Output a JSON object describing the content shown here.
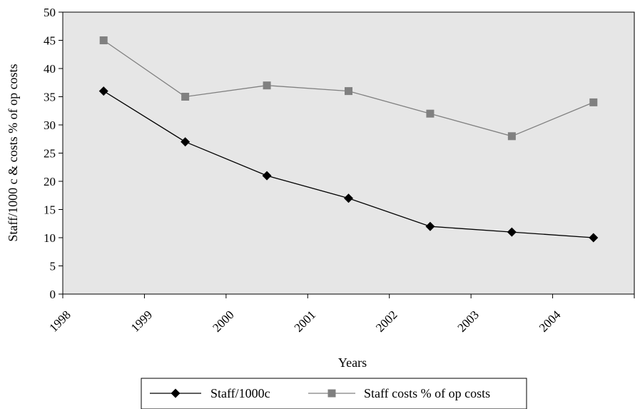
{
  "chart_data": {
    "type": "line",
    "categories": [
      "1998",
      "1999",
      "2000",
      "2001",
      "2002",
      "2003",
      "2004"
    ],
    "series": [
      {
        "name": "Staff/1000c",
        "values": [
          36,
          27,
          21,
          17,
          12,
          11,
          10
        ],
        "color": "#000000",
        "marker": "diamond"
      },
      {
        "name": "Staff costs %  of op costs",
        "values": [
          45,
          35,
          37,
          36,
          32,
          28,
          34
        ],
        "color": "#808080",
        "marker": "square"
      }
    ],
    "xlabel": "Years",
    "ylabel": "Staff/1000 c & costs % of op costs",
    "ylim": [
      0,
      50
    ],
    "yticks": [
      0,
      5,
      10,
      15,
      20,
      25,
      30,
      35,
      40,
      45,
      50
    ],
    "plot_background": "#e6e6e6",
    "grid": false,
    "legend_position": "bottom"
  }
}
